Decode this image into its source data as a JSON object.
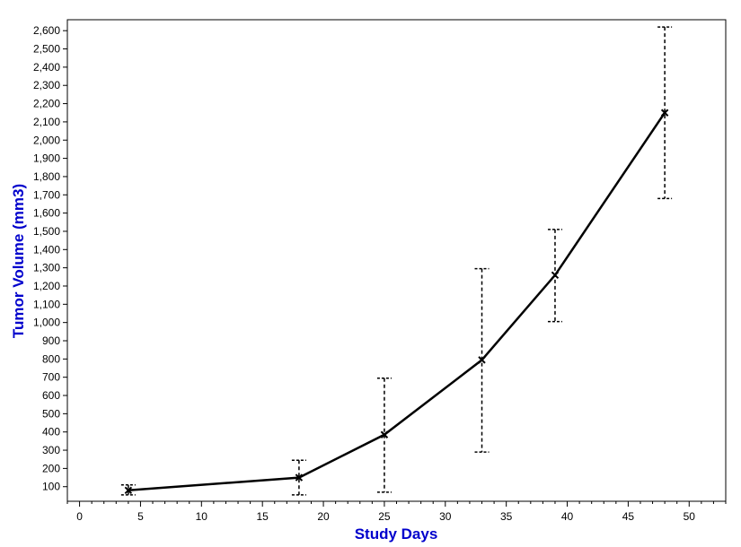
{
  "chart_data": {
    "type": "line",
    "title": "",
    "xlabel": "Study Days",
    "ylabel": "Tumor Volume (mm3)",
    "axis_title_color": "#0000cc",
    "line_color": "#000000",
    "grid": false,
    "legend": "none",
    "xlim": [
      -1,
      53
    ],
    "ylim": [
      20,
      2660
    ],
    "x_ticks": [
      0,
      5,
      10,
      15,
      20,
      25,
      30,
      35,
      40,
      45,
      50
    ],
    "x_tick_labels": [
      "0",
      "5",
      "10",
      "15",
      "20",
      "25",
      "30",
      "35",
      "40",
      "45",
      "50"
    ],
    "y_ticks": [
      100,
      200,
      300,
      400,
      500,
      600,
      700,
      800,
      900,
      1000,
      1100,
      1200,
      1300,
      1400,
      1500,
      1600,
      1700,
      1800,
      1900,
      2000,
      2100,
      2200,
      2300,
      2400,
      2500,
      2600
    ],
    "y_tick_labels": [
      "100",
      "200",
      "300",
      "400",
      "500",
      "600",
      "700",
      "800",
      "900",
      "1,000",
      "1,100",
      "1,200",
      "1,300",
      "1,400",
      "1,500",
      "1,600",
      "1,700",
      "1,800",
      "1,900",
      "2,000",
      "2,100",
      "2,200",
      "2,300",
      "2,400",
      "2,500",
      "2,600"
    ],
    "series": [
      {
        "x": [
          4,
          18,
          25,
          33,
          39,
          48
        ],
        "y": [
          80,
          150,
          385,
          795,
          1260,
          2150
        ],
        "error_low": [
          55,
          55,
          70,
          290,
          1005,
          1680
        ],
        "error_high": [
          110,
          245,
          695,
          1295,
          1510,
          2620
        ]
      }
    ]
  }
}
